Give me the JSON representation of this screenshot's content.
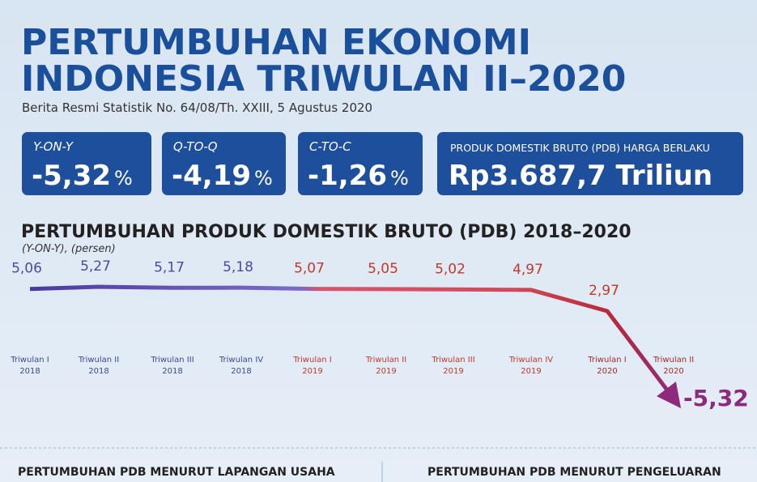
{
  "header": {
    "title_lines": [
      "PERTUMBUHAN EKONOMI",
      "INDONESIA TRIWULAN II–2020"
    ],
    "subtitle": "Berita Resmi Statistik No. 64/08/Th. XXIII, 5 Agustus 2020"
  },
  "stats": [
    {
      "label": "Y-ON-Y",
      "value": "-5,32",
      "unit": "%"
    },
    {
      "label": "Q-TO-Q",
      "value": "-4,19",
      "unit": "%"
    },
    {
      "label": "C-TO-C",
      "value": "-1,26",
      "unit": "%"
    },
    {
      "label": "PRODUK DOMESTIK BRUTO (PDB) HARGA BERLAKU",
      "value": "Rp3.687,7 Triliun"
    }
  ],
  "chart_data": {
    "type": "line",
    "title": "PERTUMBUHAN PRODUK DOMESTIK BRUTO (PDB) 2018–2020",
    "subtitle": "(Y-ON-Y), (persen)",
    "categories": [
      "Triwulan I 2018",
      "Triwulan II 2018",
      "Triwulan III 2018",
      "Triwulan IV 2018",
      "Triwulan I 2019",
      "Triwulan II 2019",
      "Triwulan III 2019",
      "Triwulan IV 2019",
      "Triwulan I 2020",
      "Triwulan II 2020"
    ],
    "values": [
      5.06,
      5.27,
      5.17,
      5.18,
      5.07,
      5.05,
      5.02,
      4.97,
      2.97,
      -5.32
    ],
    "value_labels": [
      "5,06",
      "5,27",
      "5,17",
      "5,18",
      "5,07",
      "5,05",
      "5,02",
      "4,97",
      "2,97",
      "-5,32"
    ],
    "label_colors": [
      "#4b4aa0",
      "#4b4aa0",
      "#4b4aa0",
      "#4b4aa0",
      "#c0392b",
      "#c0392b",
      "#c0392b",
      "#c0392b",
      "#c0392b",
      "#8e2a7c"
    ],
    "category_colors": [
      "#3b4a8f",
      "#3b4a8f",
      "#3b4a8f",
      "#3b4a8f",
      "#c0392b",
      "#c0392b",
      "#c0392b",
      "#c0392b",
      "#a52a2a",
      "#a52a2a"
    ]
  },
  "footer": {
    "sections": [
      "PERTUMBUHAN PDB MENURUT LAPANGAN USAHA",
      "PERTUMBUHAN PDB MENURUT PENGELUARAN"
    ]
  }
}
